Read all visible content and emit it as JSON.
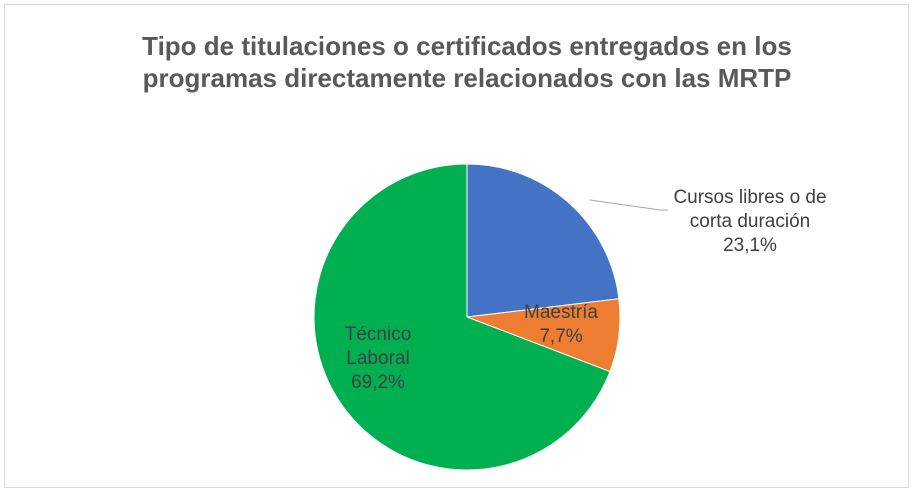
{
  "chart_data": {
    "type": "pie",
    "title": "Tipo de titulaciones o certificados entregados en los programas directamente relacionados con las MRTP",
    "categories": [
      "Cursos libres o de corta duración",
      "Maestría",
      "Técnico Laboral"
    ],
    "values": [
      23.1,
      7.7,
      69.2
    ],
    "value_labels": [
      "23,1%",
      "7,7%",
      "69,2%"
    ],
    "colors": [
      "#4472c4",
      "#ed7d31",
      "#00b050"
    ]
  }
}
